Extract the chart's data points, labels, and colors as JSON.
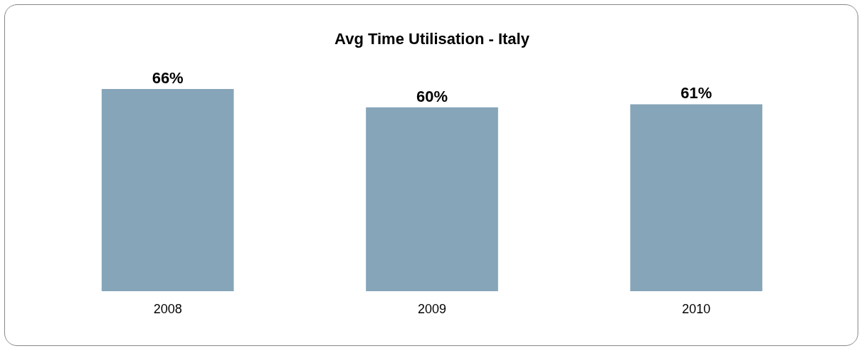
{
  "chart_data": {
    "type": "bar",
    "title": "Avg Time Utilisation - Italy",
    "categories": [
      "2008",
      "2009",
      "2010"
    ],
    "values": [
      66,
      60,
      61
    ],
    "value_labels": [
      "66%",
      "60%",
      "61%"
    ],
    "color": "#86a5b9",
    "tick_labels": "x",
    "grid": false
  }
}
